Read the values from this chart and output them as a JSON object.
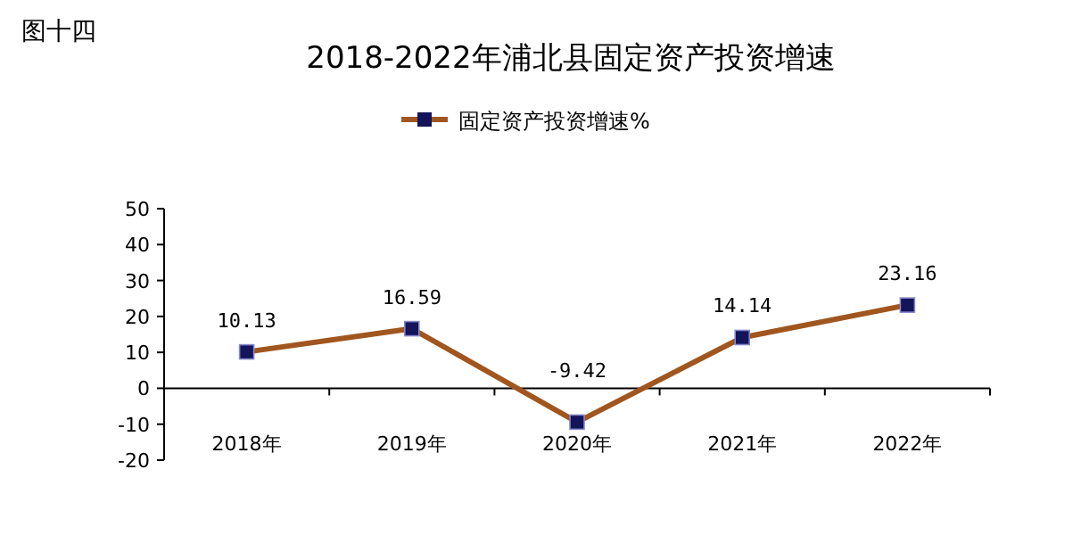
{
  "chart_data": {
    "type": "line",
    "title": "2018-2022年浦北县固定资产投资增速",
    "annotations": [
      "图十四"
    ],
    "categories": [
      "2018年",
      "2019年",
      "2020年",
      "2021年",
      "2022年"
    ],
    "series": [
      {
        "name": "固定资产投资增速%",
        "color": "#a0561e",
        "values": [
          10.13,
          16.59,
          -9.42,
          14.14,
          23.16
        ]
      }
    ],
    "ylim": [
      -20,
      50
    ],
    "yticks": [
      -20,
      -10,
      0,
      10,
      20,
      30,
      40,
      50
    ],
    "data_labels": true,
    "legend": "top",
    "marker": "square",
    "grid": false
  }
}
